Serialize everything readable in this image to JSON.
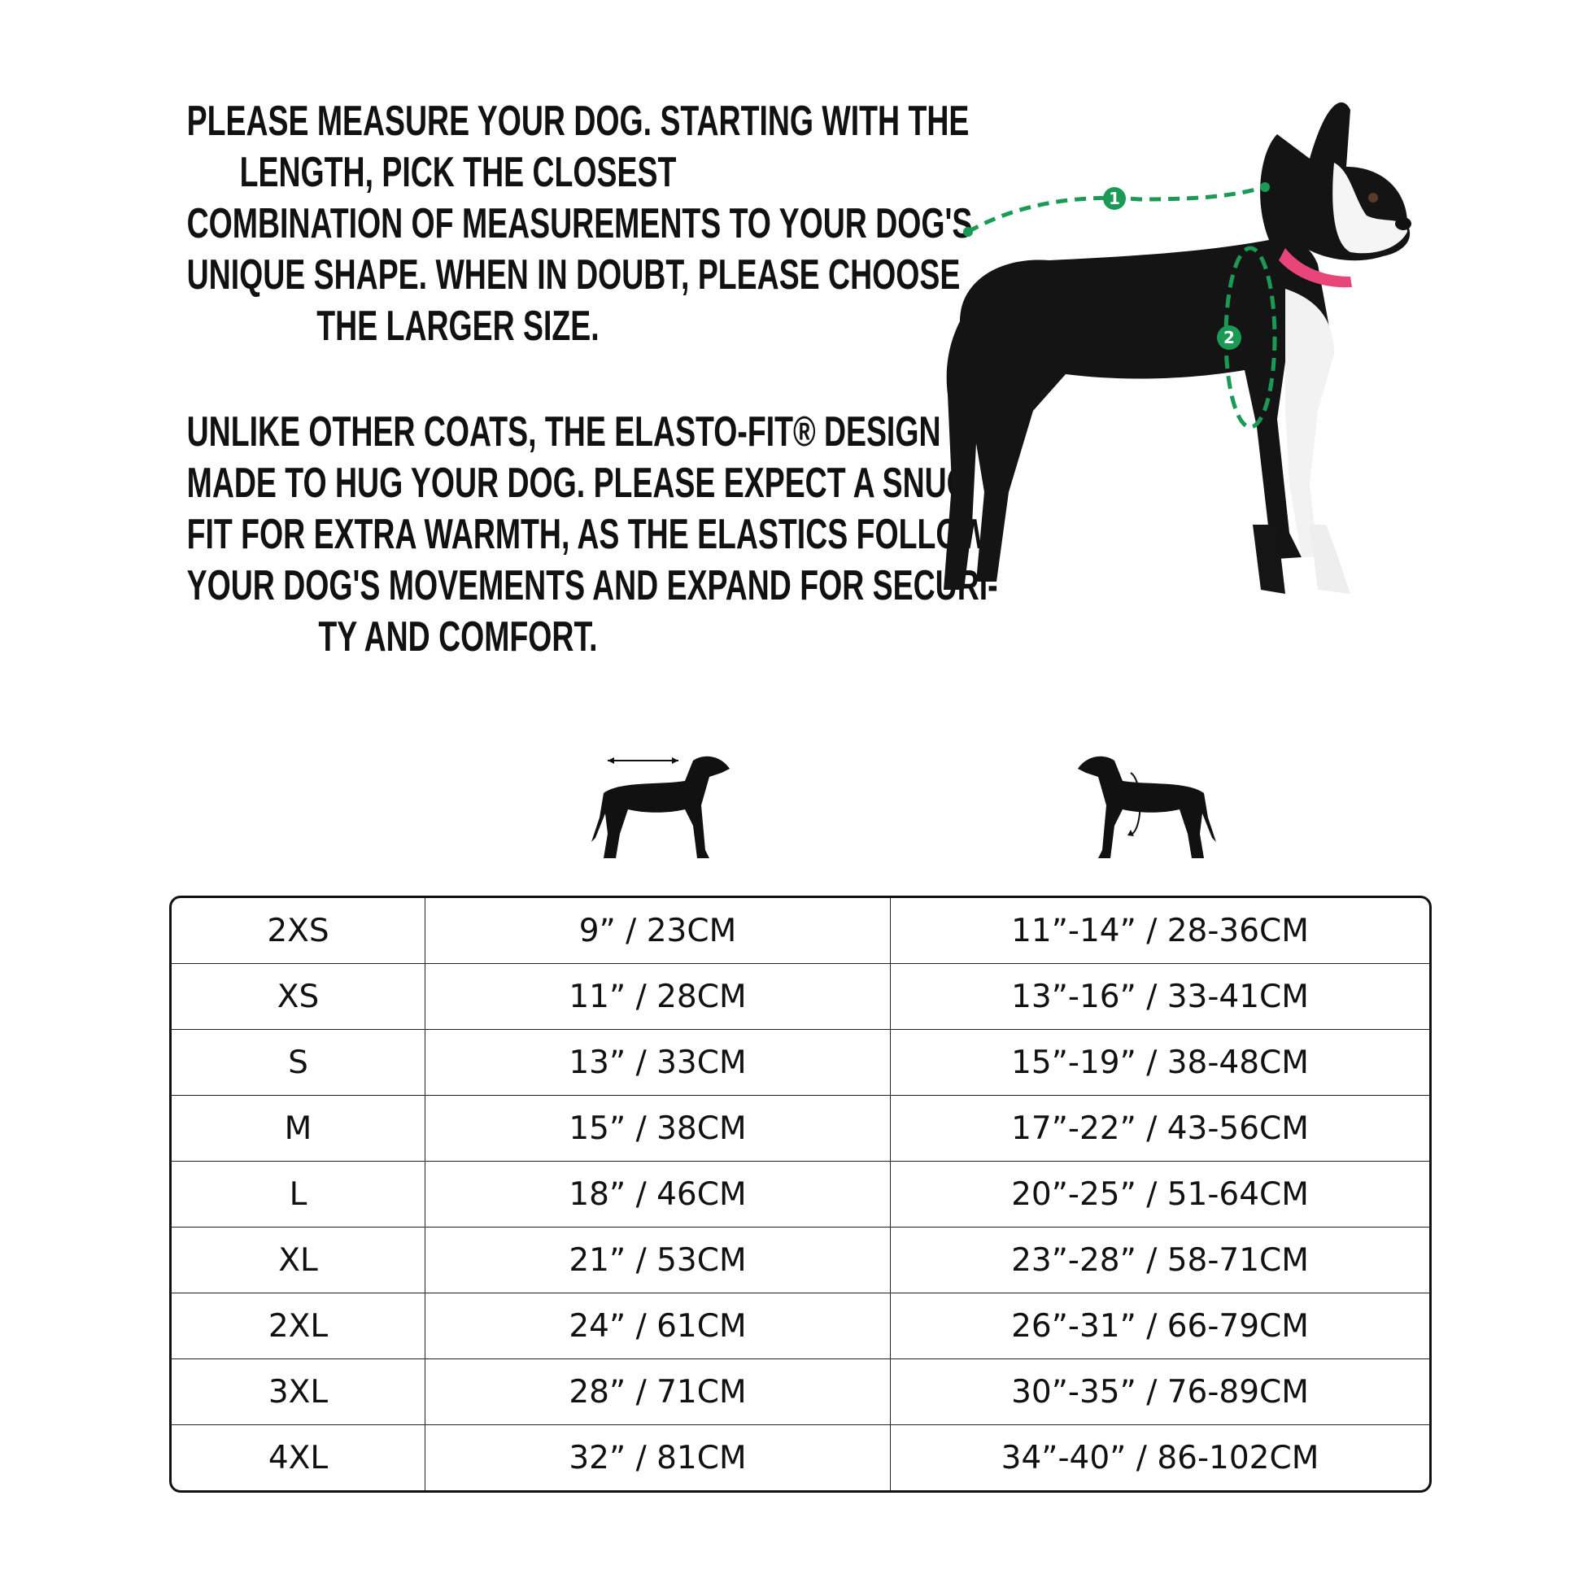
{
  "instructions": {
    "paragraph1": [
      "PLEASE MEASURE YOUR DOG. STARTING WITH THE",
      "LENGTH, PICK THE CLOSEST",
      "COMBINATION OF MEASUREMENTS TO YOUR DOG'S",
      "UNIQUE SHAPE. WHEN IN DOUBT, PLEASE CHOOSE",
      "THE LARGER SIZE."
    ],
    "paragraph2": [
      "UNLIKE OTHER COATS, THE ELASTO-FIT® DESIGN IS",
      "MADE TO HUG YOUR DOG. PLEASE EXPECT A SNUG",
      "FIT FOR EXTRA WARMTH, AS THE ELASTICS FOLLOW",
      "YOUR DOG'S MOVEMENTS AND EXPAND FOR SECURI-",
      "TY AND COMFORT."
    ]
  },
  "photo": {
    "markers": [
      "1",
      "2"
    ],
    "measure_color": "#1a9a55",
    "collar_color": "#e8457a"
  },
  "column_icons": [
    "dog-length-icon",
    "dog-chest-girth-icon"
  ],
  "size_table": {
    "rows": [
      [
        "2XS",
        "9” / 23CM",
        "11”-14” / 28-36CM"
      ],
      [
        "XS",
        "11” / 28CM",
        "13”-16” / 33-41CM"
      ],
      [
        "S",
        "13” / 33CM",
        "15”-19” / 38-48CM"
      ],
      [
        "M",
        "15” / 38CM",
        "17”-22” / 43-56CM"
      ],
      [
        "L",
        "18” / 46CM",
        "20”-25” / 51-64CM"
      ],
      [
        "XL",
        "21” / 53CM",
        "23”-28” / 58-71CM"
      ],
      [
        "2XL",
        "24” / 61CM",
        "26”-31” / 66-79CM"
      ],
      [
        "3XL",
        "28” / 71CM",
        "30”-35” / 76-89CM"
      ],
      [
        "4XL",
        "32” / 81CM",
        "34”-40” / 86-102CM"
      ]
    ]
  }
}
